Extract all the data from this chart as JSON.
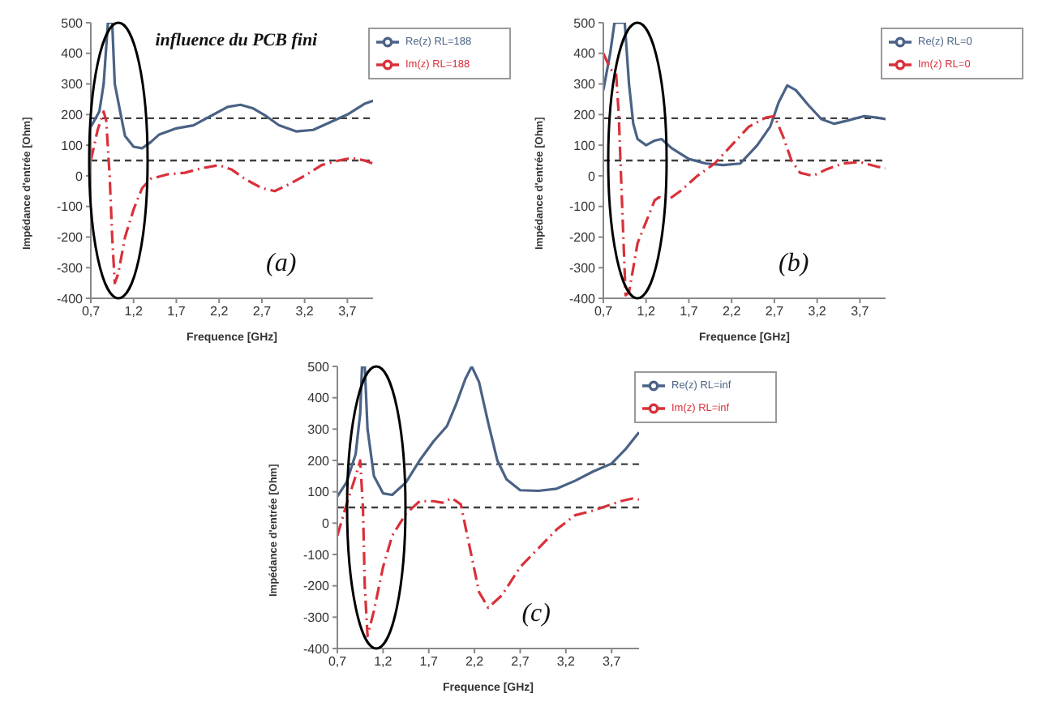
{
  "chart_data": [
    {
      "type": "line",
      "xlabel": "Frequence [GHz]",
      "ylabel": "Impédance d'entrée [Ohm]",
      "annotations": [
        "influence du PCB fini",
        "(a)"
      ],
      "xlim": [
        0.7,
        4.0
      ],
      "ylim": [
        -400,
        500
      ],
      "xticks": [
        {
          "value": 0.7,
          "label": "0,7"
        },
        {
          "value": 1.2,
          "label": "1,2"
        },
        {
          "value": 1.7,
          "label": "1,7"
        },
        {
          "value": 2.2,
          "label": "2,2"
        },
        {
          "value": 2.7,
          "label": "2,7"
        },
        {
          "value": 3.2,
          "label": "3,2"
        },
        {
          "value": 3.7,
          "label": "3,7"
        }
      ],
      "yticks": [
        -400,
        -300,
        -200,
        -100,
        0,
        100,
        200,
        300,
        400,
        500
      ],
      "grid": false,
      "legend": "top right",
      "marker": "none",
      "ref_lines": [
        {
          "axis": "y",
          "value": 188,
          "color": "#404040",
          "line_style": "dashed"
        },
        {
          "axis": "y",
          "value": 50,
          "color": "#404040",
          "line_style": "dashed"
        }
      ],
      "series": [
        {
          "name": "Re(z) RL=188",
          "color": "#4a6285",
          "line_style": "solid",
          "x": [
            0.7,
            0.8,
            0.85,
            0.9,
            0.95,
            0.98,
            1.05,
            1.1,
            1.2,
            1.3,
            1.4,
            1.5,
            1.7,
            1.9,
            2.1,
            2.3,
            2.45,
            2.6,
            2.75,
            2.9,
            3.1,
            3.3,
            3.5,
            3.7,
            3.9,
            4.0
          ],
          "values": [
            160,
            210,
            300,
            500,
            500,
            300,
            200,
            130,
            95,
            90,
            110,
            135,
            155,
            165,
            195,
            225,
            232,
            220,
            195,
            165,
            145,
            150,
            175,
            200,
            235,
            245
          ]
        },
        {
          "name": "Im(z) RL=188",
          "color": "#d9313a",
          "line_style": "dashed",
          "x": [
            0.7,
            0.78,
            0.85,
            0.88,
            0.92,
            0.95,
            0.98,
            1.02,
            1.1,
            1.2,
            1.3,
            1.4,
            1.6,
            1.8,
            2.0,
            2.2,
            2.35,
            2.5,
            2.7,
            2.85,
            3.0,
            3.2,
            3.4,
            3.6,
            3.75,
            3.9,
            4.0
          ],
          "values": [
            50,
            150,
            210,
            180,
            0,
            -200,
            -350,
            -320,
            -200,
            -110,
            -40,
            -10,
            5,
            10,
            25,
            35,
            20,
            -10,
            -40,
            -50,
            -30,
            0,
            35,
            50,
            58,
            50,
            40
          ]
        }
      ]
    },
    {
      "type": "line",
      "xlabel": "Frequence [GHz]",
      "ylabel": "Impédance d'entrée [Ohm]",
      "annotations": [
        "(b)"
      ],
      "xlim": [
        0.7,
        4.0
      ],
      "ylim": [
        -400,
        500
      ],
      "xticks": [
        {
          "value": 0.7,
          "label": "0,7"
        },
        {
          "value": 1.2,
          "label": "1,2"
        },
        {
          "value": 1.7,
          "label": "1,7"
        },
        {
          "value": 2.2,
          "label": "2,2"
        },
        {
          "value": 2.7,
          "label": "2,7"
        },
        {
          "value": 3.2,
          "label": "3,2"
        },
        {
          "value": 3.7,
          "label": "3,7"
        }
      ],
      "yticks": [
        -400,
        -300,
        -200,
        -100,
        0,
        100,
        200,
        300,
        400,
        500
      ],
      "grid": false,
      "legend": "top right",
      "marker": "none",
      "ref_lines": [
        {
          "axis": "y",
          "value": 188,
          "color": "#404040",
          "line_style": "dashed"
        },
        {
          "axis": "y",
          "value": 50,
          "color": "#404040",
          "line_style": "dashed"
        }
      ],
      "series": [
        {
          "name": "Re(z) RL=0",
          "color": "#4a6285",
          "line_style": "solid",
          "x": [
            0.7,
            0.78,
            0.83,
            0.95,
            1.0,
            1.05,
            1.1,
            1.2,
            1.3,
            1.38,
            1.5,
            1.7,
            1.9,
            2.1,
            2.3,
            2.5,
            2.65,
            2.75,
            2.85,
            2.95,
            3.1,
            3.25,
            3.4,
            3.55,
            3.75,
            3.9,
            4.0
          ],
          "values": [
            280,
            400,
            500,
            500,
            300,
            170,
            120,
            100,
            115,
            120,
            90,
            55,
            40,
            35,
            40,
            100,
            160,
            240,
            295,
            280,
            230,
            185,
            170,
            180,
            195,
            190,
            185
          ]
        },
        {
          "name": "Im(z) RL=0",
          "color": "#d9313a",
          "line_style": "dashed",
          "x": [
            0.7,
            0.78,
            0.85,
            0.88,
            0.92,
            0.96,
            1.0,
            1.1,
            1.2,
            1.3,
            1.35,
            1.45,
            1.6,
            1.8,
            2.0,
            2.2,
            2.4,
            2.6,
            2.7,
            2.8,
            2.9,
            3.0,
            3.15,
            3.3,
            3.5,
            3.7,
            3.9,
            4.0
          ],
          "values": [
            400,
            350,
            330,
            200,
            -100,
            -390,
            -380,
            -220,
            -150,
            -80,
            -70,
            -80,
            -50,
            0,
            40,
            100,
            160,
            190,
            195,
            130,
            50,
            10,
            0,
            20,
            40,
            45,
            30,
            25
          ]
        }
      ]
    },
    {
      "type": "line",
      "xlabel": "Frequence [GHz]",
      "ylabel": "Impédance d'entrée [Ohm]",
      "annotations": [
        "(c)"
      ],
      "xlim": [
        0.7,
        4.0
      ],
      "ylim": [
        -400,
        500
      ],
      "xticks": [
        {
          "value": 0.7,
          "label": "0,7"
        },
        {
          "value": 1.2,
          "label": "1,2"
        },
        {
          "value": 1.7,
          "label": "1,7"
        },
        {
          "value": 2.2,
          "label": "2,2"
        },
        {
          "value": 2.7,
          "label": "2,7"
        },
        {
          "value": 3.2,
          "label": "3,2"
        },
        {
          "value": 3.7,
          "label": "3,7"
        }
      ],
      "yticks": [
        -400,
        -300,
        -200,
        -100,
        0,
        100,
        200,
        300,
        400,
        500
      ],
      "grid": false,
      "legend": "top right",
      "marker": "none",
      "ref_lines": [
        {
          "axis": "y",
          "value": 188,
          "color": "#404040",
          "line_style": "dashed"
        },
        {
          "axis": "y",
          "value": 50,
          "color": "#404040",
          "line_style": "dashed"
        }
      ],
      "series": [
        {
          "name": "Re(z) RL=inf",
          "color": "#4a6285",
          "line_style": "solid",
          "x": [
            0.7,
            0.8,
            0.9,
            0.95,
            0.97,
            1.0,
            1.03,
            1.1,
            1.2,
            1.3,
            1.45,
            1.6,
            1.75,
            1.9,
            2.0,
            2.1,
            2.17,
            2.25,
            2.35,
            2.45,
            2.55,
            2.7,
            2.9,
            3.1,
            3.3,
            3.5,
            3.7,
            3.85,
            4.0
          ],
          "values": [
            85,
            130,
            220,
            350,
            500,
            500,
            300,
            150,
            95,
            90,
            130,
            200,
            260,
            310,
            380,
            460,
            500,
            450,
            320,
            200,
            140,
            105,
            103,
            110,
            135,
            165,
            190,
            235,
            290
          ]
        },
        {
          "name": "Im(z) RL=inf",
          "color": "#d9313a",
          "line_style": "dashed",
          "x": [
            0.7,
            0.8,
            0.9,
            0.95,
            0.98,
            1.0,
            1.03,
            1.1,
            1.2,
            1.3,
            1.45,
            1.6,
            1.75,
            1.85,
            1.95,
            2.05,
            2.15,
            2.25,
            2.35,
            2.5,
            2.7,
            2.9,
            3.1,
            3.3,
            3.5,
            3.65,
            3.8,
            3.95,
            4.0
          ],
          "values": [
            -40,
            60,
            150,
            200,
            50,
            -200,
            -360,
            -280,
            -140,
            -40,
            30,
            70,
            70,
            65,
            80,
            60,
            -80,
            -220,
            -270,
            -230,
            -140,
            -80,
            -20,
            25,
            40,
            55,
            70,
            80,
            75
          ]
        }
      ]
    }
  ]
}
